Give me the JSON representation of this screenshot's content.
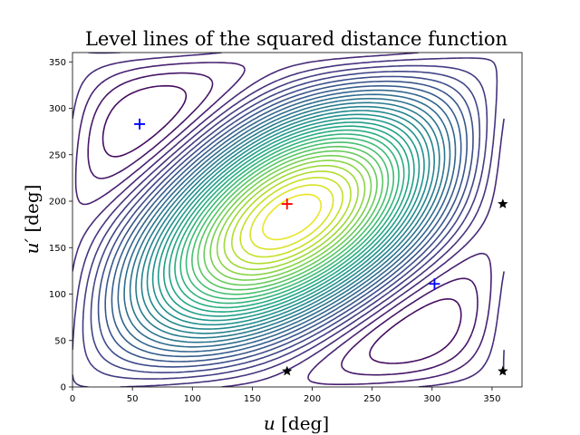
{
  "chart_data": {
    "type": "contour",
    "title": "Level lines of the squared distance function",
    "xlabel_symbol": "u",
    "xlabel_unit": "[deg]",
    "ylabel_symbol": "u′",
    "ylabel_unit": "[deg]",
    "xlim": [
      0,
      375
    ],
    "ylim": [
      0,
      360
    ],
    "xticks": [
      0,
      50,
      100,
      150,
      200,
      250,
      300,
      350
    ],
    "yticks": [
      0,
      50,
      100,
      150,
      200,
      250,
      300,
      350
    ],
    "xtick_labels": [
      "0",
      "50",
      "100",
      "150",
      "200",
      "250",
      "300",
      "350"
    ],
    "ytick_labels": [
      "0",
      "50",
      "100",
      "150",
      "200",
      "250",
      "300",
      "350"
    ],
    "colormap": "viridis",
    "grid": false,
    "markers": [
      {
        "kind": "plus",
        "color": "#ff0000",
        "x": 179,
        "y": 197
      },
      {
        "kind": "plus",
        "color": "#0000ff",
        "x": 56,
        "y": 283
      },
      {
        "kind": "plus",
        "color": "#0000ff",
        "x": 302,
        "y": 111
      },
      {
        "kind": "star",
        "color": "#000000",
        "x": 179,
        "y": 17
      },
      {
        "kind": "star",
        "color": "#000000",
        "x": 359,
        "y": 197
      },
      {
        "kind": "star",
        "color": "#000000",
        "x": 359,
        "y": 17
      }
    ]
  }
}
